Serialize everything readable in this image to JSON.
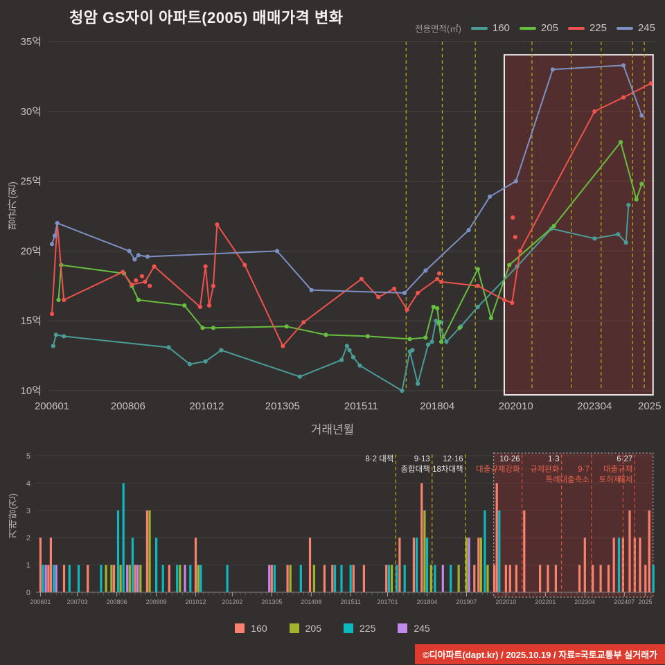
{
  "title": "청암 GS자이 아파트(2005) 매매가격 변화",
  "footer": "©디아파트(dapt.kr) / 2025.10.19 / 자료=국토교통부 실거래가",
  "accent_colors": {
    "highlight_fill": "rgba(165,52,45,0.28)",
    "policy_yellow": "#bdb20e",
    "policy_orange": "#d2543a",
    "footer_red": "#dd3b2d"
  },
  "events": [
    {
      "year": 2017.3,
      "phase": "early",
      "label1": "8·2 대책",
      "label2": "",
      "label3": ""
    },
    {
      "year": 2018.45,
      "phase": "early",
      "label1": "9·13",
      "label2": "종합대책",
      "label3": ""
    },
    {
      "year": 2019.5,
      "phase": "early",
      "label1": "12·16",
      "label2": "18차대책",
      "label3": ""
    },
    {
      "year": 2021.3,
      "phase": "late",
      "label1": "10·26",
      "label2": "대출규제강화",
      "label3": ""
    },
    {
      "year": 2022.55,
      "phase": "late",
      "label1": "1·3",
      "label2": "규제완화",
      "label3": ""
    },
    {
      "year": 2023.5,
      "phase": "late",
      "label1": "",
      "label2": "9·7",
      "label3": "특례대출축소"
    },
    {
      "year": 2024.5,
      "phase": "late",
      "label1": "",
      "label2": "",
      "label3": "토허제"
    },
    {
      "year": 2024.87,
      "phase": "late",
      "label1": "6·27",
      "label2": "대출규제",
      "label3": "해제"
    }
  ],
  "chart_data": [
    {
      "type": "line",
      "legend_title": "전용면적(㎡)",
      "ylabel": "평균가(원)",
      "xlabel": "거래년월",
      "ylim": [
        10,
        35
      ],
      "yticks": [
        {
          "v": 35,
          "label": "35억"
        },
        {
          "v": 30,
          "label": "30억"
        },
        {
          "v": 25,
          "label": "25억"
        },
        {
          "v": 20,
          "label": "20억"
        },
        {
          "v": 15,
          "label": "15억"
        },
        {
          "v": 10,
          "label": "10억"
        }
      ],
      "xticks": [
        {
          "label": "200601",
          "year": 2006.04
        },
        {
          "label": "200806",
          "year": 2008.46
        },
        {
          "label": "201012",
          "year": 2010.96
        },
        {
          "label": "201305",
          "year": 2013.37
        },
        {
          "label": "201511",
          "year": 2015.87
        },
        {
          "label": "201804",
          "year": 2018.29
        },
        {
          "label": "202010",
          "year": 2020.79
        },
        {
          "label": "202304",
          "year": 2023.29
        },
        {
          "label": "2025",
          "year": 2025.04
        }
      ],
      "highlight_box": {
        "x0": 2020.42,
        "x1": 2025.15,
        "y0": 9.7,
        "y1": 34.05
      },
      "series": [
        {
          "name": "160",
          "color": "#4a9d97",
          "points": [
            [
              2006.08,
              13.2
            ],
            [
              2006.17,
              14.0
            ],
            [
              2006.42,
              13.9
            ],
            [
              2009.75,
              13.1
            ],
            [
              2010.42,
              11.9
            ],
            [
              2010.92,
              12.1
            ],
            [
              2011.42,
              12.9
            ],
            [
              2013.92,
              11.0
            ],
            [
              2015.25,
              12.2
            ],
            [
              2015.42,
              13.2
            ],
            [
              2015.5,
              12.9
            ],
            [
              2015.62,
              12.4
            ],
            [
              2015.83,
              11.8
            ],
            [
              2017.17,
              10.0
            ],
            [
              2017.42,
              12.8
            ],
            [
              2017.67,
              10.5
            ],
            [
              2018.0,
              13.3
            ],
            [
              2018.12,
              13.5
            ],
            [
              2018.25,
              15.0
            ],
            [
              2018.33,
              14.8
            ],
            [
              2018.58,
              13.5
            ],
            [
              2019.04,
              14.6
            ],
            [
              2019.58,
              16.0
            ],
            [
              2020.83,
              18.9
            ],
            [
              2021.92,
              21.6
            ],
            [
              2023.29,
              20.9
            ],
            [
              2024.04,
              21.2
            ],
            [
              2024.29,
              20.6
            ],
            [
              2024.37,
              23.3
            ]
          ]
        },
        {
          "name": "205",
          "color": "#66bf3f",
          "points": [
            [
              2006.25,
              16.5
            ],
            [
              2006.33,
              19.0
            ],
            [
              2008.33,
              18.4
            ],
            [
              2008.58,
              17.5
            ],
            [
              2008.79,
              16.5
            ],
            [
              2010.25,
              16.1
            ],
            [
              2010.83,
              14.5
            ],
            [
              2011.17,
              14.5
            ],
            [
              2013.5,
              14.6
            ],
            [
              2014.75,
              14.0
            ],
            [
              2016.08,
              13.9
            ],
            [
              2017.42,
              13.7
            ],
            [
              2017.92,
              13.8
            ],
            [
              2018.17,
              16.0
            ],
            [
              2018.29,
              15.9
            ],
            [
              2018.42,
              13.5
            ],
            [
              2019.58,
              18.7
            ],
            [
              2020.0,
              15.2
            ],
            [
              2020.58,
              19.0
            ],
            [
              2022.0,
              21.8
            ],
            [
              2024.12,
              27.8
            ],
            [
              2024.62,
              23.7
            ],
            [
              2024.79,
              24.8
            ]
          ]
        },
        {
          "name": "225",
          "color": "#f0524d",
          "points": [
            [
              2006.04,
              15.5
            ],
            [
              2006.21,
              22.0
            ],
            [
              2006.42,
              16.5
            ],
            [
              2008.29,
              18.5
            ],
            [
              2008.58,
              17.6
            ],
            [
              2009.0,
              17.8
            ],
            [
              2009.29,
              18.9
            ],
            [
              2010.75,
              16.0
            ],
            [
              2010.92,
              18.9
            ],
            [
              2011.04,
              16.1
            ],
            [
              2011.17,
              17.5
            ],
            [
              2011.29,
              21.9
            ],
            [
              2012.17,
              19.0
            ],
            [
              2013.38,
              13.2
            ],
            [
              2014.04,
              14.9
            ],
            [
              2015.88,
              18.0
            ],
            [
              2016.42,
              16.7
            ],
            [
              2016.92,
              17.3
            ],
            [
              2017.33,
              15.8
            ],
            [
              2017.67,
              17.0
            ],
            [
              2018.29,
              18.0
            ],
            [
              2018.42,
              17.8
            ],
            [
              2019.58,
              17.5
            ],
            [
              2020.42,
              16.5
            ],
            [
              2020.67,
              16.3
            ],
            [
              2020.92,
              20.0
            ],
            [
              2023.29,
              30.0
            ],
            [
              2024.21,
              31.0
            ],
            [
              2025.08,
              32.0
            ]
          ]
        },
        {
          "name": "245",
          "color": "#7d90c3",
          "points": [
            [
              2006.04,
              20.5
            ],
            [
              2006.13,
              21.1
            ],
            [
              2006.21,
              22.0
            ],
            [
              2008.5,
              20.0
            ],
            [
              2008.67,
              19.4
            ],
            [
              2008.79,
              19.7
            ],
            [
              2009.08,
              19.6
            ],
            [
              2013.2,
              20.0
            ],
            [
              2014.29,
              17.2
            ],
            [
              2017.25,
              17.0
            ],
            [
              2017.92,
              18.6
            ],
            [
              2019.29,
              21.5
            ],
            [
              2019.96,
              23.9
            ],
            [
              2020.79,
              25.0
            ],
            [
              2021.96,
              33.0
            ],
            [
              2024.21,
              33.3
            ],
            [
              2024.79,
              29.7
            ]
          ]
        }
      ],
      "scatter": [
        {
          "series": "225",
          "points": [
            [
              2020.69,
              22.4
            ],
            [
              2020.77,
              21.0
            ],
            [
              2018.35,
              18.4
            ],
            [
              2008.9,
              18.2
            ],
            [
              2009.15,
              17.5
            ],
            [
              2008.71,
              17.9
            ]
          ]
        },
        {
          "series": "160",
          "points": [
            [
              2018.42,
              14.9
            ],
            [
              2017.5,
              12.9
            ]
          ]
        },
        {
          "series": "205",
          "points": [
            [
              2018.35,
              14.9
            ],
            [
              2019.0,
              14.5
            ]
          ]
        }
      ]
    },
    {
      "type": "bar",
      "ylabel": "거래량(건)",
      "ylim": [
        0,
        5
      ],
      "yticks": [
        0,
        1,
        2,
        3,
        4,
        5
      ],
      "xticks": [
        {
          "label": "200601",
          "year": 2006.04
        },
        {
          "label": "200703",
          "year": 2007.21
        },
        {
          "label": "200806",
          "year": 2008.46
        },
        {
          "label": "200909",
          "year": 2009.71
        },
        {
          "label": "201012",
          "year": 2010.96
        },
        {
          "label": "201202",
          "year": 2012.12
        },
        {
          "label": "201305",
          "year": 2013.37
        },
        {
          "label": "201408",
          "year": 2014.62
        },
        {
          "label": "201511",
          "year": 2015.87
        },
        {
          "label": "201701",
          "year": 2017.04
        },
        {
          "label": "201804",
          "year": 2018.29
        },
        {
          "label": "201907",
          "year": 2019.54
        },
        {
          "label": "202010",
          "year": 2020.79
        },
        {
          "label": "202201",
          "year": 2022.04
        },
        {
          "label": "202304",
          "year": 2023.29
        },
        {
          "label": "202407",
          "year": 2024.54
        },
        {
          "label": "2025",
          "year": 2025.2
        }
      ],
      "colors": {
        "160": "#f9826f",
        "205": "#a3b32b",
        "225": "#0cb9c1",
        "245": "#c089ec"
      },
      "legend": [
        "160",
        "205",
        "225",
        "245"
      ],
      "highlight_box": {
        "x0": 2020.4,
        "x1": 2025.45
      },
      "bars": [
        [
          2006.04,
          "160",
          2
        ],
        [
          2006.12,
          "225",
          1
        ],
        [
          2006.21,
          "245",
          1
        ],
        [
          2006.29,
          "160",
          1
        ],
        [
          2006.37,
          "160",
          2
        ],
        [
          2006.46,
          "225",
          1
        ],
        [
          2006.54,
          "245",
          1
        ],
        [
          2006.79,
          "160",
          1
        ],
        [
          2006.96,
          "225",
          1
        ],
        [
          2007.25,
          "225",
          1
        ],
        [
          2007.54,
          "160",
          1
        ],
        [
          2007.96,
          "225",
          1
        ],
        [
          2008.12,
          "205",
          1
        ],
        [
          2008.29,
          "205",
          1
        ],
        [
          2008.37,
          "160",
          1
        ],
        [
          2008.5,
          "225",
          3
        ],
        [
          2008.58,
          "205",
          1
        ],
        [
          2008.67,
          "225",
          4
        ],
        [
          2008.79,
          "245",
          1
        ],
        [
          2008.87,
          "205",
          1
        ],
        [
          2008.96,
          "225",
          2
        ],
        [
          2009.04,
          "160",
          1
        ],
        [
          2009.12,
          "245",
          1
        ],
        [
          2009.21,
          "205",
          1
        ],
        [
          2009.42,
          "160",
          3
        ],
        [
          2009.5,
          "205",
          3
        ],
        [
          2009.71,
          "225",
          2
        ],
        [
          2009.92,
          "225",
          1
        ],
        [
          2010.12,
          "160",
          1
        ],
        [
          2010.37,
          "225",
          1
        ],
        [
          2010.46,
          "205",
          1
        ],
        [
          2010.62,
          "245",
          1
        ],
        [
          2010.79,
          "225",
          1
        ],
        [
          2010.96,
          "160",
          2
        ],
        [
          2011.04,
          "205",
          1
        ],
        [
          2011.12,
          "225",
          1
        ],
        [
          2011.96,
          "225",
          1
        ],
        [
          2013.29,
          "245",
          1
        ],
        [
          2013.37,
          "160",
          1
        ],
        [
          2013.46,
          "225",
          1
        ],
        [
          2013.87,
          "160",
          1
        ],
        [
          2013.96,
          "205",
          1
        ],
        [
          2014.29,
          "225",
          1
        ],
        [
          2014.58,
          "160",
          2
        ],
        [
          2014.71,
          "205",
          1
        ],
        [
          2015.04,
          "160",
          1
        ],
        [
          2015.29,
          "160",
          1
        ],
        [
          2015.37,
          "225",
          1
        ],
        [
          2015.58,
          "225",
          1
        ],
        [
          2015.87,
          "225",
          1
        ],
        [
          2015.96,
          "160",
          1
        ],
        [
          2016.29,
          "160",
          1
        ],
        [
          2017.0,
          "160",
          1
        ],
        [
          2017.08,
          "225",
          1
        ],
        [
          2017.17,
          "205",
          1
        ],
        [
          2017.33,
          "225",
          1
        ],
        [
          2017.42,
          "160",
          2
        ],
        [
          2017.58,
          "225",
          1
        ],
        [
          2017.87,
          "160",
          2
        ],
        [
          2017.96,
          "225",
          2
        ],
        [
          2018.12,
          "160",
          4
        ],
        [
          2018.21,
          "205",
          3
        ],
        [
          2018.29,
          "225",
          2
        ],
        [
          2018.42,
          "205",
          1
        ],
        [
          2018.54,
          "225",
          1
        ],
        [
          2018.79,
          "245",
          1
        ],
        [
          2019.04,
          "225",
          1
        ],
        [
          2019.29,
          "205",
          1
        ],
        [
          2019.54,
          "205",
          2
        ],
        [
          2019.62,
          "245",
          2
        ],
        [
          2019.79,
          "160",
          1
        ],
        [
          2019.92,
          "160",
          2
        ],
        [
          2020.0,
          "205",
          2
        ],
        [
          2020.12,
          "225",
          3
        ],
        [
          2020.21,
          "205",
          1
        ],
        [
          2020.42,
          "160",
          1
        ],
        [
          2020.5,
          "160",
          4
        ],
        [
          2020.58,
          "225",
          3
        ],
        [
          2020.79,
          "160",
          1
        ],
        [
          2020.92,
          "160",
          1
        ],
        [
          2021.12,
          "160",
          1
        ],
        [
          2021.37,
          "160",
          3
        ],
        [
          2021.87,
          "160",
          1
        ],
        [
          2022.12,
          "160",
          1
        ],
        [
          2022.37,
          "160",
          1
        ],
        [
          2023.12,
          "160",
          1
        ],
        [
          2023.29,
          "160",
          2
        ],
        [
          2023.54,
          "160",
          1
        ],
        [
          2023.79,
          "160",
          1
        ],
        [
          2024.04,
          "160",
          1
        ],
        [
          2024.21,
          "160",
          2
        ],
        [
          2024.37,
          "225",
          2
        ],
        [
          2024.5,
          "160",
          2
        ],
        [
          2024.71,
          "160",
          3
        ],
        [
          2024.87,
          "160",
          2
        ],
        [
          2025.04,
          "160",
          2
        ],
        [
          2025.21,
          "160",
          1
        ],
        [
          2025.33,
          "160",
          3
        ],
        [
          2025.46,
          "225",
          1
        ]
      ]
    }
  ]
}
